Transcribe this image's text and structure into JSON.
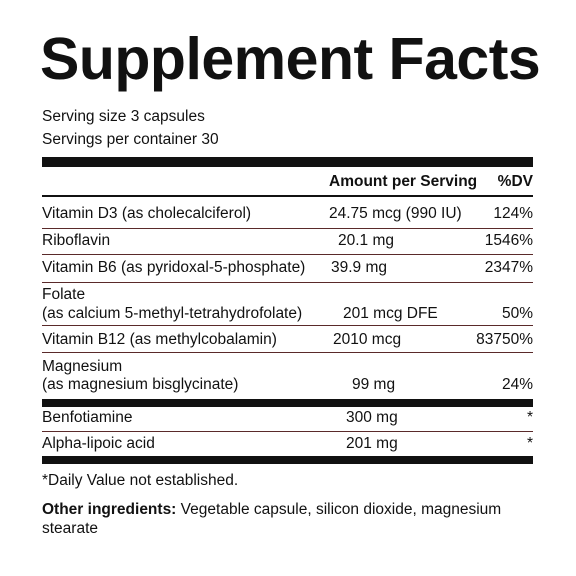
{
  "title": "Supplement Facts",
  "serving_size": "Serving size 3 capsules",
  "servings_per_container": "Servings per container 30",
  "table": {
    "header": {
      "amount": "Amount per Serving",
      "dv": "%DV"
    },
    "rows": [
      {
        "name": [
          "Vitamin D3 (as cholecalciferol)"
        ],
        "amount": "24.75 mcg (990 IU)",
        "dv": "124%"
      },
      {
        "name": [
          "Riboflavin"
        ],
        "amount": "20.1 mg",
        "dv": "1546%"
      },
      {
        "name": [
          "Vitamin B6 (as pyridoxal-5-phosphate)"
        ],
        "amount": "39.9 mg",
        "dv": "2347%"
      },
      {
        "name": [
          "Folate",
          "(as calcium 5-methyl-tetrahydrofolate)"
        ],
        "amount": "201 mcg DFE",
        "dv": "50%"
      },
      {
        "name": [
          "Vitamin B12 (as methylcobalamin)"
        ],
        "amount": "2010 mcg",
        "dv": "83750%"
      },
      {
        "name": [
          "Magnesium",
          "(as magnesium bisglycinate)"
        ],
        "amount": "99 mg",
        "dv": "24%"
      },
      {
        "name": [
          "Benfotiamine"
        ],
        "amount": "300 mg",
        "dv": "*"
      },
      {
        "name": [
          "Alpha-lipoic acid"
        ],
        "amount": "201 mg",
        "dv": "*"
      }
    ]
  },
  "footnote": "*Daily Value not established.",
  "other_ingredients": {
    "label": "Other ingredients:",
    "text": "Vegetable capsule, silicon dioxide, magnesium stearate"
  }
}
